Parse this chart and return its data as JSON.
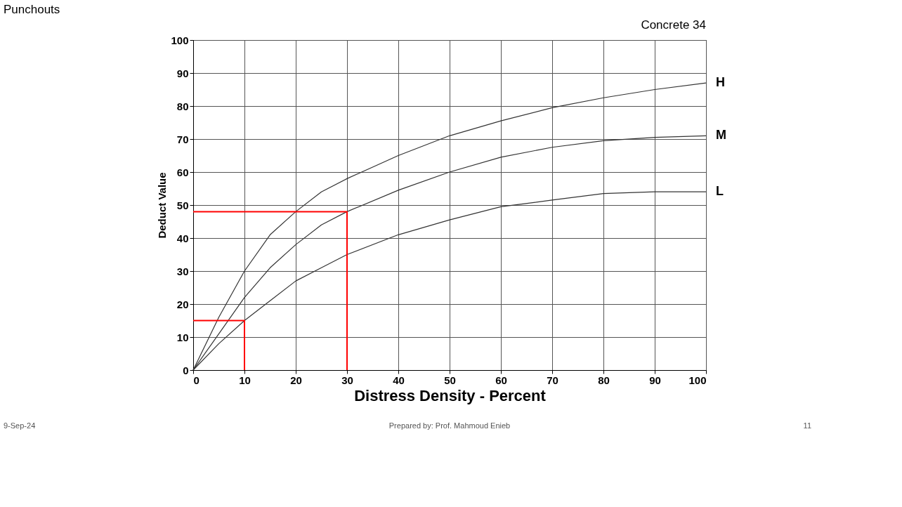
{
  "chart_data": {
    "type": "line",
    "title": "Punchouts",
    "subtitle": "Concrete 34",
    "xlabel": "Distress Density - Percent",
    "ylabel": "Deduct Value",
    "xlim": [
      0,
      100
    ],
    "ylim": [
      0,
      100
    ],
    "xticks": [
      0,
      10,
      20,
      30,
      40,
      50,
      60,
      70,
      80,
      90,
      100
    ],
    "yticks": [
      0,
      10,
      20,
      30,
      40,
      50,
      60,
      70,
      80,
      90,
      100
    ],
    "grid": true,
    "marker": "none",
    "line_style": "solid",
    "series": [
      {
        "name": "H",
        "color": "#333333",
        "x": [
          0,
          5,
          10,
          15,
          20,
          25,
          30,
          40,
          50,
          60,
          70,
          80,
          90,
          100
        ],
        "values": [
          0,
          16,
          30,
          41,
          48,
          54,
          58,
          65,
          71,
          75.5,
          79.5,
          82.5,
          85,
          87
        ]
      },
      {
        "name": "M",
        "color": "#333333",
        "x": [
          0,
          5,
          10,
          15,
          20,
          25,
          30,
          40,
          50,
          60,
          70,
          80,
          90,
          100
        ],
        "values": [
          0,
          11,
          22,
          31,
          38,
          44,
          48,
          54.5,
          60,
          64.5,
          67.5,
          69.5,
          70.5,
          71
        ]
      },
      {
        "name": "L",
        "color": "#333333",
        "x": [
          0,
          5,
          10,
          15,
          20,
          25,
          30,
          40,
          50,
          60,
          70,
          80,
          90,
          100
        ],
        "values": [
          0,
          8,
          15,
          21,
          27,
          31,
          35,
          41,
          45.5,
          49.5,
          51.5,
          53.5,
          54,
          54
        ]
      },
      {
        "color": "#ff0000",
        "x": [
          10,
          10,
          0
        ],
        "values": [
          0,
          15,
          15
        ]
      },
      {
        "color": "#ff0000",
        "x": [
          30,
          30,
          0
        ],
        "values": [
          0,
          48,
          48
        ]
      }
    ],
    "annotations": [
      "9-Sep-24",
      "Prepared by: Prof. Mahmoud Enieb",
      "11"
    ]
  }
}
